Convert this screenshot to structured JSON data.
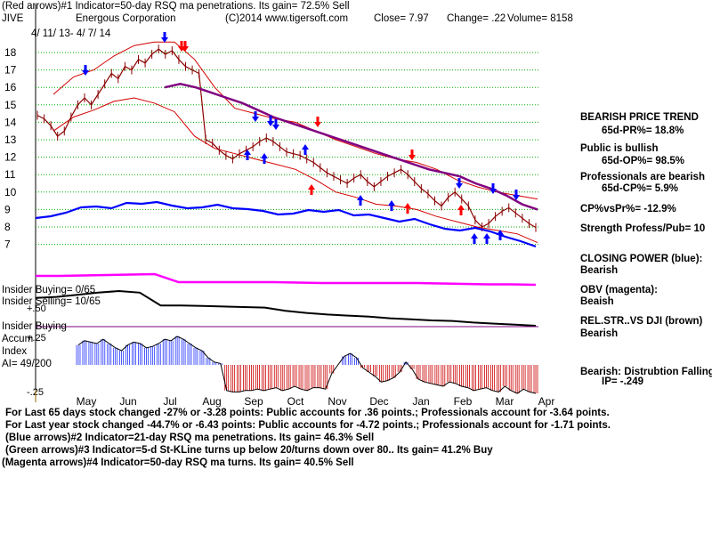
{
  "header": {
    "line1": "(Red arrows)#1 Indicator=50-day RSQ ma penetrations. Its gain= 72.5% Sell",
    "symbol": "JIVE",
    "company": "Energous Corporation",
    "copyright": "(C)2014 www.tigersoft.com",
    "close": "Close=  7.97",
    "change": "Change= .22",
    "volume": "Volume= 8158",
    "date_range": "4/ 11/ 13-  4/ 7/ 14"
  },
  "chart_data": {
    "type": "line",
    "title": "Energous Corporation",
    "x_ticks": [
      "May",
      "Jun",
      "Jul",
      "Aug",
      "Sep",
      "Oct",
      "Nov",
      "Dec",
      "Jan",
      "Feb",
      "Mar",
      "Apr"
    ],
    "y_ticks": [
      18,
      17,
      16,
      15,
      14,
      13,
      12,
      11,
      10,
      9,
      8,
      7
    ],
    "ylim": [
      7,
      18
    ],
    "grid": true,
    "close_prices": [
      14.4,
      14.2,
      13.8,
      13.2,
      13.5,
      14.3,
      15.0,
      15.4,
      15.0,
      15.6,
      16.2,
      16.8,
      16.5,
      17.2,
      17.0,
      17.6,
      17.4,
      17.9,
      18.2,
      17.9,
      18.1,
      17.6,
      17.2,
      17.0,
      16.8,
      13.0,
      12.8,
      12.4,
      12.1,
      11.9,
      12.2,
      12.4,
      12.6,
      12.9,
      13.1,
      12.9,
      12.6,
      12.3,
      12.2,
      12.1,
      11.9,
      11.7,
      11.4,
      11.1,
      10.9,
      10.7,
      10.5,
      10.8,
      11.0,
      10.6,
      10.3,
      10.6,
      10.9,
      11.1,
      11.3,
      11.0,
      10.6,
      10.2,
      9.9,
      9.5,
      9.2,
      9.7,
      10.0,
      9.6,
      9.2,
      8.4,
      8.0,
      8.2,
      8.6,
      8.9,
      9.1,
      8.8,
      8.5,
      8.2,
      7.97
    ],
    "ma_50_day": [
      16.0,
      16.2,
      16.0,
      15.7,
      15.4,
      15.1,
      14.7,
      14.3,
      14.0,
      13.7,
      13.4,
      13.1,
      12.8,
      12.5,
      12.2,
      11.9,
      11.6,
      11.3,
      11.1,
      10.9,
      10.5,
      10.2,
      9.8,
      9.3,
      9.0
    ],
    "ma_50_day_start_month": "Jul",
    "band_upper": [
      15.6,
      16.6,
      17.0,
      17.8,
      18.4,
      18.6,
      18.6,
      17.6,
      16.0,
      14.8,
      14.5,
      14.2,
      14.0,
      13.5,
      13.0,
      12.6,
      12.2,
      11.9,
      11.7,
      11.3,
      10.7,
      10.3,
      10.0,
      9.8,
      9.6
    ],
    "band_lower": [
      13.5,
      14.3,
      14.7,
      15.2,
      15.4,
      15.1,
      14.6,
      13.2,
      12.5,
      12.2,
      11.9,
      11.6,
      11.3,
      10.7,
      10.0,
      9.7,
      9.3,
      9.2,
      9.0,
      8.6,
      8.3,
      8.0,
      7.8,
      7.6,
      7.1
    ],
    "closing_power": [
      6.0,
      6.2,
      6.6,
      7.2,
      7.3,
      7.1,
      7.7,
      7.6,
      7.8,
      7.4,
      7.1,
      7.2,
      7.5,
      7.1,
      7.0,
      6.8,
      6.4,
      6.5,
      6.9,
      6.7,
      6.9,
      6.3,
      6.4,
      6.0,
      5.6,
      5.9,
      5.3,
      4.8,
      4.6,
      4.9,
      4.5,
      3.9,
      3.4,
      2.8
    ],
    "obv": [
      3.0,
      3.0,
      3.05,
      3.1,
      3.15,
      3.2,
      2.3,
      2.3,
      2.3,
      2.3,
      2.3,
      2.25,
      2.2,
      2.2,
      2.2,
      2.2,
      2.2,
      2.15,
      2.1,
      2.05,
      2.05,
      2.0
    ],
    "rel_strength_vs_dji": [
      3.1,
      3.2,
      3.4,
      3.6,
      3.75,
      3.6,
      2.4,
      2.4,
      2.35,
      2.3,
      2.25,
      2.2,
      1.9,
      1.7,
      1.55,
      1.45,
      1.35,
      1.2,
      1.1,
      1.0,
      0.95,
      0.8,
      0.7,
      0.6,
      0.5
    ],
    "accum_index_labels": [
      "+.50",
      "+.25",
      "-.25"
    ],
    "accum_index_values": [
      0.14,
      0.17,
      0.16,
      0.15,
      0.18,
      0.15,
      0.12,
      0.1,
      0.14,
      0.16,
      0.15,
      0.12,
      0.13,
      0.15,
      0.18,
      0.17,
      0.2,
      0.18,
      0.15,
      0.12,
      0.1,
      0.05,
      0.02,
      0.01,
      -0.18,
      -0.19,
      -0.19,
      -0.18,
      -0.18,
      -0.17,
      -0.18,
      -0.17,
      -0.16,
      -0.18,
      -0.17,
      -0.15,
      -0.17,
      -0.18,
      -0.16,
      -0.16,
      -0.17,
      -0.06,
      0.0,
      0.06,
      0.08,
      0.05,
      -0.02,
      -0.05,
      -0.08,
      -0.12,
      -0.11,
      -0.09,
      -0.05,
      0.02,
      -0.03,
      -0.1,
      -0.12,
      -0.13,
      -0.14,
      -0.15,
      -0.12,
      -0.13,
      -0.15,
      -0.16,
      -0.18,
      -0.17,
      -0.16,
      -0.18,
      -0.19,
      -0.15,
      -0.18,
      -0.2,
      -0.17,
      -0.19,
      -0.2
    ]
  },
  "left_labels": {
    "insider_buying": "Insider Buying= 0/65",
    "insider_selling": "Insider Selling= 10/65",
    "insider_buying_2": "Insider Buying",
    "accum_1": "Accum",
    "accum_2": "Index",
    "ai": "AI= 49/200"
  },
  "right_panel": {
    "bearish_trend": "BEARISH PRICE TREND",
    "pr": "65d-PR%= 18.8%",
    "public_bullish": "Public is bullish",
    "op": "65d-OP%= 98.5%",
    "prof_bearish": "Professionals are bearish",
    "cp": "65d-CP%= 5.9%",
    "cpvspr": "CP%vsPr%= -12.9%",
    "strength": "Strength Profess/Pub= 10",
    "closing_power_label": "CLOSING POWER (blue):",
    "closing_power_val": "Bearish",
    "obv_label": "OBV (magenta):",
    "obv_val": "Beaish",
    "rel_label": "REL.STR..VS DJI (brown)",
    "rel_val": "Bearish",
    "bearish_dist": "Bearish: Distrubtion Falling",
    "ip": "IP= -.249"
  },
  "footer": {
    "line1": "For Last 65 days stock changed -27% or -3.28 points:  Public accounts for  .36 points.;  Professionals account for -3.64 points.",
    "line2": "For Last year stock changed -44.7% or -6.43 points:  Public accounts for -4.72 points.;  Professionals account for -1.71 points.",
    "line3": "(Blue arrows)#2 Indicator=21-day RSQ ma penetrations. Its gain= 46.3% Sell",
    "line4": "(Green arrows)#3 Indicator=5-d St-KLine turns up below 20/turns down over 80.. Its gain= 41.2% Buy",
    "line5": "(Magenta arrows)#4 Indicator=50-day RSQ ma turns. Its gain= 40.5% Sell"
  },
  "colors": {
    "price": "#8b0000",
    "band": "#d40000",
    "ma": "#800080",
    "closing_power": "#0000ff",
    "obv": "#ff00ff",
    "rel_str": "#000000",
    "accum_pos": "#2233ff",
    "accum_neg": "#cc0000",
    "grid": "#00aa00",
    "arrow_red": "#ff0000",
    "arrow_blue": "#0000ff"
  }
}
